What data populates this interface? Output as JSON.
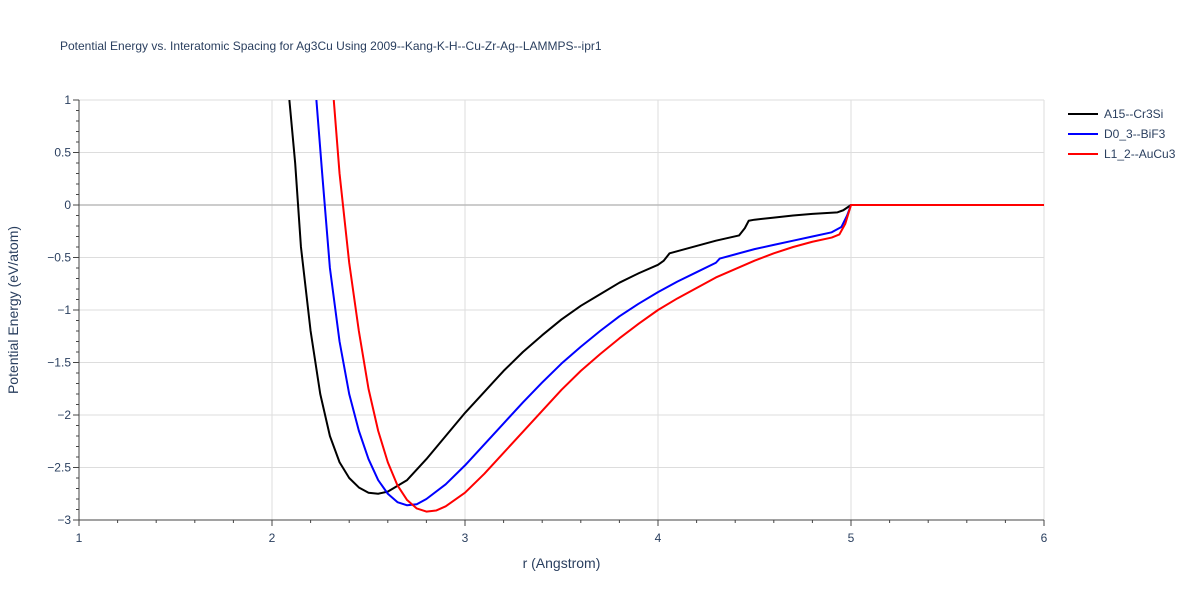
{
  "chart_data": {
    "type": "line",
    "title": "Potential Energy vs. Interatomic Spacing for Ag3Cu Using 2009--Kang-K-H--Cu-Zr-Ag--LAMMPS--ipr1",
    "xlabel": "r (Angstrom)",
    "ylabel": "Potential Energy (eV/atom)",
    "xlim": [
      1,
      6
    ],
    "ylim": [
      -3,
      1
    ],
    "xticks": [
      1,
      2,
      3,
      4,
      5,
      6
    ],
    "xtick_labels": [
      "1",
      "2",
      "3",
      "4",
      "5",
      "6"
    ],
    "yticks": [
      1,
      0.5,
      0,
      -0.5,
      -1,
      -1.5,
      -2,
      -2.5,
      -3
    ],
    "ytick_labels": [
      "1",
      "0.5",
      "0",
      "−0.5",
      "−1",
      "−1.5",
      "−2",
      "−2.5",
      "−3"
    ],
    "grid": true,
    "legend_position": "top-right",
    "series": [
      {
        "name": "A15--Cr3Si",
        "color": "#000000",
        "points": [
          [
            2.09,
            1.0
          ],
          [
            2.12,
            0.4
          ],
          [
            2.15,
            -0.4
          ],
          [
            2.2,
            -1.2
          ],
          [
            2.25,
            -1.8
          ],
          [
            2.3,
            -2.2
          ],
          [
            2.35,
            -2.45
          ],
          [
            2.4,
            -2.6
          ],
          [
            2.45,
            -2.69
          ],
          [
            2.5,
            -2.74
          ],
          [
            2.55,
            -2.75
          ],
          [
            2.6,
            -2.73
          ],
          [
            2.7,
            -2.62
          ],
          [
            2.8,
            -2.42
          ],
          [
            2.9,
            -2.2
          ],
          [
            3.0,
            -1.98
          ],
          [
            3.1,
            -1.78
          ],
          [
            3.2,
            -1.58
          ],
          [
            3.3,
            -1.4
          ],
          [
            3.4,
            -1.24
          ],
          [
            3.5,
            -1.09
          ],
          [
            3.6,
            -0.96
          ],
          [
            3.7,
            -0.85
          ],
          [
            3.8,
            -0.74
          ],
          [
            3.9,
            -0.65
          ],
          [
            4.0,
            -0.57
          ],
          [
            4.03,
            -0.53
          ],
          [
            4.06,
            -0.46
          ],
          [
            4.2,
            -0.39
          ],
          [
            4.3,
            -0.34
          ],
          [
            4.42,
            -0.29
          ],
          [
            4.45,
            -0.22
          ],
          [
            4.47,
            -0.15
          ],
          [
            4.5,
            -0.14
          ],
          [
            4.6,
            -0.12
          ],
          [
            4.7,
            -0.1
          ],
          [
            4.8,
            -0.085
          ],
          [
            4.93,
            -0.07
          ],
          [
            4.96,
            -0.05
          ],
          [
            5.0,
            0.0
          ],
          [
            6.0,
            0.0
          ]
        ]
      },
      {
        "name": "D0_3--BiF3",
        "color": "#0000ff",
        "points": [
          [
            2.23,
            1.0
          ],
          [
            2.26,
            0.3
          ],
          [
            2.3,
            -0.6
          ],
          [
            2.35,
            -1.3
          ],
          [
            2.4,
            -1.8
          ],
          [
            2.45,
            -2.15
          ],
          [
            2.5,
            -2.42
          ],
          [
            2.55,
            -2.62
          ],
          [
            2.6,
            -2.75
          ],
          [
            2.65,
            -2.83
          ],
          [
            2.7,
            -2.86
          ],
          [
            2.75,
            -2.85
          ],
          [
            2.8,
            -2.8
          ],
          [
            2.9,
            -2.66
          ],
          [
            3.0,
            -2.48
          ],
          [
            3.1,
            -2.28
          ],
          [
            3.2,
            -2.08
          ],
          [
            3.3,
            -1.88
          ],
          [
            3.4,
            -1.69
          ],
          [
            3.5,
            -1.51
          ],
          [
            3.6,
            -1.35
          ],
          [
            3.7,
            -1.2
          ],
          [
            3.8,
            -1.06
          ],
          [
            3.9,
            -0.94
          ],
          [
            4.0,
            -0.83
          ],
          [
            4.1,
            -0.73
          ],
          [
            4.2,
            -0.64
          ],
          [
            4.3,
            -0.55
          ],
          [
            4.32,
            -0.51
          ],
          [
            4.4,
            -0.47
          ],
          [
            4.5,
            -0.42
          ],
          [
            4.6,
            -0.38
          ],
          [
            4.7,
            -0.34
          ],
          [
            4.8,
            -0.3
          ],
          [
            4.9,
            -0.26
          ],
          [
            4.95,
            -0.21
          ],
          [
            4.98,
            -0.1
          ],
          [
            5.0,
            0.0
          ],
          [
            6.0,
            0.0
          ]
        ]
      },
      {
        "name": "L1_2--AuCu3",
        "color": "#ff0000",
        "points": [
          [
            2.32,
            1.0
          ],
          [
            2.35,
            0.3
          ],
          [
            2.4,
            -0.55
          ],
          [
            2.45,
            -1.2
          ],
          [
            2.5,
            -1.75
          ],
          [
            2.55,
            -2.15
          ],
          [
            2.6,
            -2.45
          ],
          [
            2.65,
            -2.67
          ],
          [
            2.7,
            -2.81
          ],
          [
            2.75,
            -2.89
          ],
          [
            2.8,
            -2.92
          ],
          [
            2.85,
            -2.91
          ],
          [
            2.9,
            -2.87
          ],
          [
            3.0,
            -2.74
          ],
          [
            3.1,
            -2.56
          ],
          [
            3.2,
            -2.36
          ],
          [
            3.3,
            -2.16
          ],
          [
            3.4,
            -1.96
          ],
          [
            3.5,
            -1.76
          ],
          [
            3.6,
            -1.58
          ],
          [
            3.7,
            -1.42
          ],
          [
            3.8,
            -1.27
          ],
          [
            3.9,
            -1.13
          ],
          [
            4.0,
            -1.0
          ],
          [
            4.1,
            -0.89
          ],
          [
            4.2,
            -0.79
          ],
          [
            4.3,
            -0.69
          ],
          [
            4.4,
            -0.61
          ],
          [
            4.5,
            -0.53
          ],
          [
            4.6,
            -0.46
          ],
          [
            4.7,
            -0.4
          ],
          [
            4.8,
            -0.35
          ],
          [
            4.9,
            -0.31
          ],
          [
            4.94,
            -0.28
          ],
          [
            4.97,
            -0.18
          ],
          [
            5.0,
            0.0
          ],
          [
            6.0,
            0.0
          ]
        ]
      }
    ]
  }
}
